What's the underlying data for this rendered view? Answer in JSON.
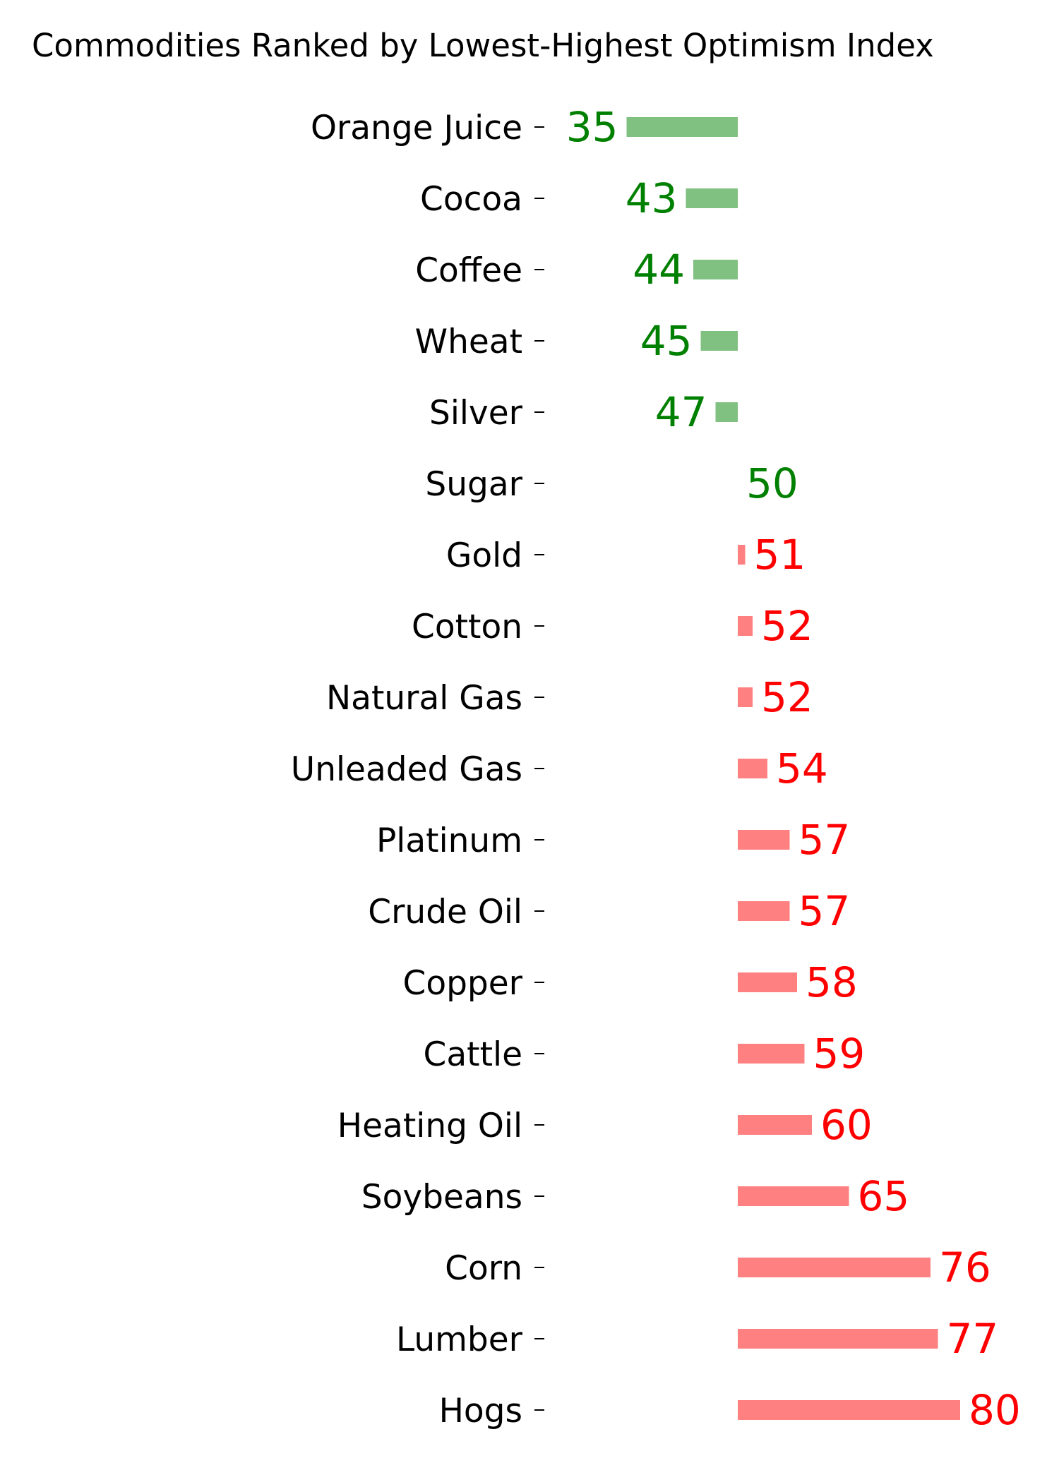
{
  "chart_data": {
    "type": "bar",
    "orientation": "horizontal",
    "title": "Commodities Ranked by Lowest-Highest Optimism Index",
    "xlabel": "",
    "ylabel": "",
    "baseline": 50,
    "categories": [
      "Orange Juice",
      "Cocoa",
      "Coffee",
      "Wheat",
      "Silver",
      "Sugar",
      "Gold",
      "Cotton",
      "Natural Gas",
      "Unleaded Gas",
      "Platinum",
      "Crude Oil",
      "Copper",
      "Cattle",
      "Heating Oil",
      "Soybeans",
      "Corn",
      "Lumber",
      "Hogs"
    ],
    "values": [
      35,
      43,
      44,
      45,
      47,
      50,
      51,
      52,
      52,
      54,
      57,
      57,
      58,
      59,
      60,
      65,
      76,
      77,
      80
    ],
    "grid": false,
    "legend": "none",
    "colors": {
      "below_bar": "#80c080",
      "below_text": "#008000",
      "above_bar": "#ff8080",
      "above_text": "#ff0000",
      "tick": "#000000"
    }
  }
}
